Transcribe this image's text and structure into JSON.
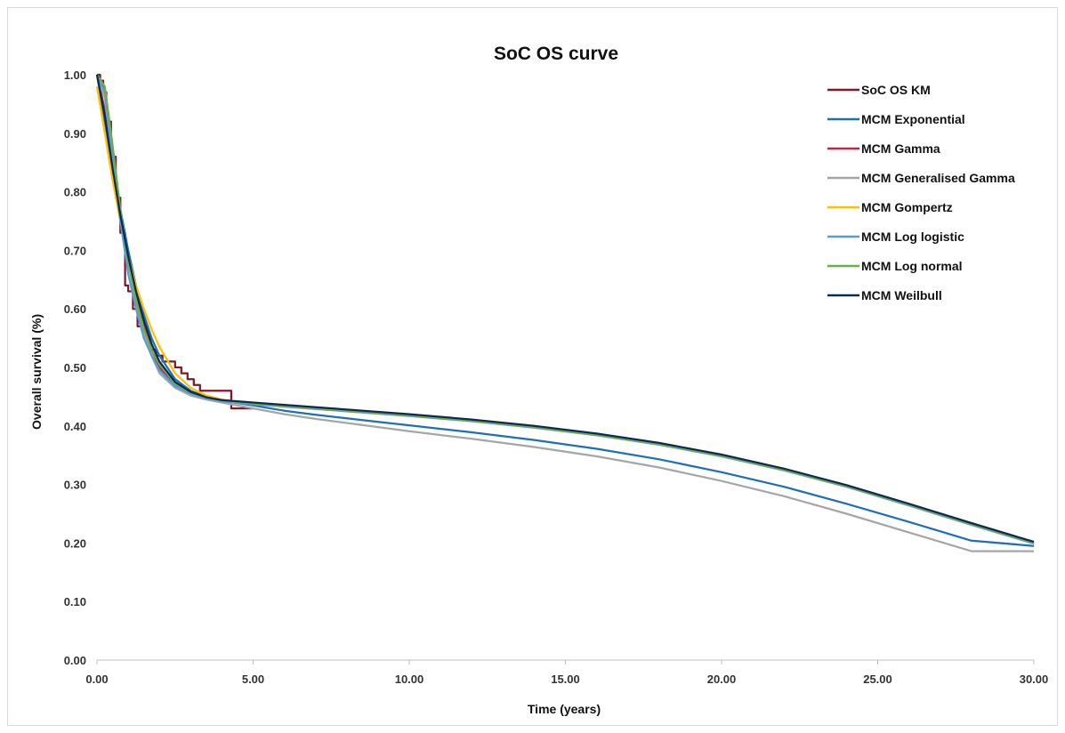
{
  "chart_data": {
    "type": "line",
    "title": "SoC OS curve",
    "xlabel": "Time (years)",
    "ylabel": "Overall survival (%)",
    "xlim": [
      0,
      30
    ],
    "ylim": [
      0,
      1
    ],
    "x_ticks": [
      "0.00",
      "5.00",
      "10.00",
      "15.00",
      "20.00",
      "25.00",
      "30.00"
    ],
    "y_ticks": [
      "0.00",
      "0.10",
      "0.20",
      "0.30",
      "0.40",
      "0.50",
      "0.60",
      "0.70",
      "0.80",
      "0.90",
      "1.00"
    ],
    "grid": false,
    "legend_position": "top-right",
    "series": [
      {
        "name": "SoC OS KM",
        "color": "#7b1b2e",
        "step": true,
        "x": [
          0,
          0.1,
          0.2,
          0.3,
          0.45,
          0.6,
          0.75,
          0.9,
          1.0,
          1.15,
          1.3,
          1.5,
          1.7,
          1.9,
          2.1,
          2.3,
          2.5,
          2.7,
          2.9,
          3.1,
          3.3,
          4.3,
          4.3,
          5.0
        ],
        "y": [
          1.0,
          0.99,
          0.97,
          0.92,
          0.86,
          0.79,
          0.73,
          0.64,
          0.63,
          0.6,
          0.57,
          0.55,
          0.53,
          0.52,
          0.51,
          0.51,
          0.5,
          0.49,
          0.48,
          0.47,
          0.46,
          0.46,
          0.43,
          0.43
        ]
      },
      {
        "name": "MCM Exponential",
        "color": "#1f6fb4",
        "x": [
          0,
          0.25,
          0.5,
          0.75,
          1.0,
          1.25,
          1.5,
          1.75,
          2.0,
          2.5,
          3.0,
          3.5,
          4.0,
          5.0,
          6,
          7,
          8,
          9,
          10,
          12,
          14,
          16,
          18,
          20,
          22,
          24,
          26,
          28,
          30
        ],
        "y": [
          1.0,
          0.92,
          0.84,
          0.77,
          0.7,
          0.64,
          0.59,
          0.55,
          0.52,
          0.48,
          0.46,
          0.45,
          0.443,
          0.435,
          0.426,
          0.419,
          0.413,
          0.407,
          0.401,
          0.389,
          0.376,
          0.361,
          0.343,
          0.321,
          0.296,
          0.267,
          0.236,
          0.204,
          0.195
        ]
      },
      {
        "name": "MCM Gamma",
        "color": "#c0264b",
        "x": [
          0,
          0.25,
          0.5,
          0.75,
          1.0,
          1.25,
          1.5,
          1.75,
          2.0,
          2.5,
          3.0,
          3.5,
          4.0,
          5.0,
          6,
          7,
          8,
          9,
          10,
          12,
          14,
          16,
          18,
          20,
          22,
          24,
          26,
          28,
          30
        ],
        "y": [
          1.0,
          0.94,
          0.85,
          0.76,
          0.68,
          0.62,
          0.57,
          0.53,
          0.5,
          0.47,
          0.455,
          0.447,
          0.442,
          0.438,
          0.434,
          0.43,
          0.426,
          0.422,
          0.418,
          0.409,
          0.398,
          0.385,
          0.369,
          0.349,
          0.325,
          0.297,
          0.265,
          0.232,
          0.2
        ]
      },
      {
        "name": "MCM Generalised Gamma",
        "color": "#a6a6a6",
        "x": [
          0,
          0.25,
          0.5,
          0.75,
          1.0,
          1.25,
          1.5,
          1.75,
          2.0,
          2.5,
          3.0,
          3.5,
          4.0,
          5.0,
          6,
          7,
          8,
          9,
          10,
          12,
          14,
          16,
          18,
          20,
          22,
          24,
          26,
          28,
          30
        ],
        "y": [
          1.0,
          0.96,
          0.86,
          0.76,
          0.68,
          0.61,
          0.56,
          0.52,
          0.49,
          0.465,
          0.452,
          0.445,
          0.44,
          0.43,
          0.42,
          0.412,
          0.405,
          0.398,
          0.391,
          0.378,
          0.364,
          0.348,
          0.329,
          0.306,
          0.28,
          0.25,
          0.218,
          0.186,
          0.186
        ]
      },
      {
        "name": "MCM Gompertz",
        "color": "#ffc000",
        "x": [
          0,
          0.25,
          0.5,
          0.75,
          1.0,
          1.25,
          1.5,
          1.75,
          2.0,
          2.5,
          3.0,
          3.5,
          4.0,
          5.0,
          6,
          7,
          8,
          9,
          10,
          12,
          14,
          16,
          18,
          20,
          22,
          24,
          26,
          28,
          30
        ],
        "y": [
          0.98,
          0.9,
          0.82,
          0.75,
          0.69,
          0.64,
          0.6,
          0.565,
          0.535,
          0.49,
          0.465,
          0.452,
          0.445,
          0.438,
          0.433,
          0.429,
          0.425,
          0.421,
          0.417,
          0.408,
          0.397,
          0.384,
          0.368,
          0.348,
          0.324,
          0.296,
          0.265,
          0.232,
          0.2
        ]
      },
      {
        "name": "MCM Log logistic",
        "color": "#5b9bd5",
        "x": [
          0,
          0.25,
          0.5,
          0.75,
          1.0,
          1.25,
          1.5,
          1.75,
          2.0,
          2.5,
          3.0,
          3.5,
          4.0,
          5.0,
          6,
          7,
          8,
          9,
          10,
          12,
          14,
          16,
          18,
          20,
          22,
          24,
          26,
          28,
          30
        ],
        "y": [
          1.0,
          0.97,
          0.86,
          0.75,
          0.66,
          0.6,
          0.55,
          0.52,
          0.495,
          0.468,
          0.455,
          0.447,
          0.442,
          0.437,
          0.433,
          0.429,
          0.425,
          0.421,
          0.417,
          0.408,
          0.397,
          0.384,
          0.368,
          0.348,
          0.324,
          0.296,
          0.264,
          0.231,
          0.199
        ]
      },
      {
        "name": "MCM Log normal",
        "color": "#70ad47",
        "x": [
          0,
          0.25,
          0.5,
          0.75,
          1.0,
          1.25,
          1.5,
          1.75,
          2.0,
          2.5,
          3.0,
          3.5,
          4.0,
          5.0,
          6,
          7,
          8,
          9,
          10,
          12,
          14,
          16,
          18,
          20,
          22,
          24,
          26,
          28,
          30
        ],
        "y": [
          1.0,
          0.98,
          0.88,
          0.77,
          0.68,
          0.615,
          0.565,
          0.53,
          0.505,
          0.472,
          0.457,
          0.449,
          0.444,
          0.438,
          0.434,
          0.43,
          0.426,
          0.422,
          0.418,
          0.409,
          0.398,
          0.385,
          0.369,
          0.349,
          0.325,
          0.297,
          0.265,
          0.232,
          0.2
        ]
      },
      {
        "name": "MCM Weilbull",
        "color": "#0d2a52",
        "x": [
          0,
          0.25,
          0.5,
          0.75,
          1.0,
          1.25,
          1.5,
          1.75,
          2.0,
          2.5,
          3.0,
          3.5,
          4.0,
          5.0,
          6,
          7,
          8,
          9,
          10,
          12,
          14,
          16,
          18,
          20,
          22,
          24,
          26,
          28,
          30
        ],
        "y": [
          1.0,
          0.93,
          0.84,
          0.76,
          0.69,
          0.63,
          0.58,
          0.54,
          0.51,
          0.475,
          0.458,
          0.449,
          0.444,
          0.44,
          0.436,
          0.432,
          0.428,
          0.424,
          0.42,
          0.411,
          0.4,
          0.387,
          0.371,
          0.351,
          0.327,
          0.299,
          0.267,
          0.234,
          0.202
        ]
      }
    ]
  }
}
